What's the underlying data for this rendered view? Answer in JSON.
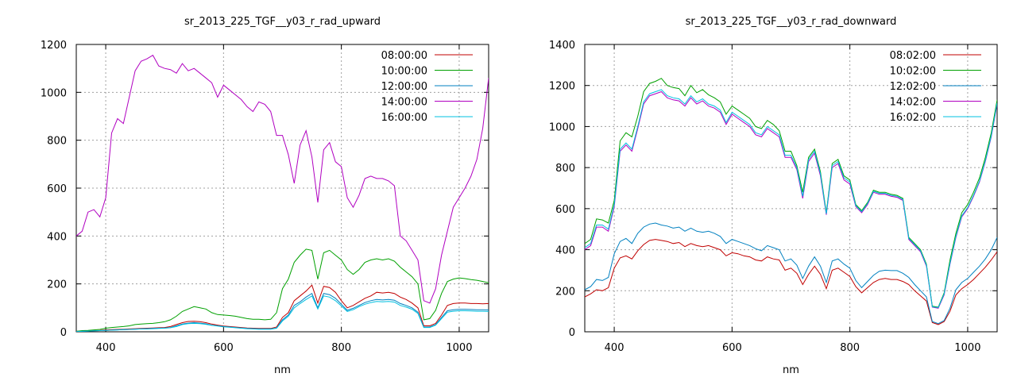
{
  "chart_data": [
    {
      "type": "line",
      "title": "sr_2013_225_TGF__y03_r_rad_upward",
      "xlabel": "nm",
      "ylabel": "",
      "xlim": [
        350,
        1050
      ],
      "ylim": [
        0,
        1200
      ],
      "xticks": [
        400,
        600,
        800,
        1000
      ],
      "yticks": [
        0,
        200,
        400,
        600,
        800,
        1000,
        1200
      ],
      "grid": true,
      "legend_position": "top-right",
      "x": [
        350,
        360,
        370,
        380,
        390,
        400,
        410,
        420,
        430,
        440,
        450,
        460,
        470,
        480,
        490,
        500,
        510,
        520,
        530,
        540,
        550,
        560,
        570,
        580,
        590,
        600,
        610,
        620,
        630,
        640,
        650,
        660,
        670,
        680,
        690,
        700,
        710,
        720,
        730,
        740,
        750,
        760,
        770,
        780,
        790,
        800,
        810,
        820,
        830,
        840,
        850,
        860,
        870,
        880,
        890,
        900,
        910,
        920,
        930,
        940,
        950,
        960,
        970,
        980,
        990,
        1000,
        1010,
        1020,
        1030,
        1040,
        1050
      ],
      "series": [
        {
          "name": "08:00:00",
          "color": "#c00000",
          "values": [
            2,
            3,
            4,
            5,
            6,
            8,
            9,
            10,
            11,
            12,
            13,
            14,
            15,
            16,
            17,
            18,
            22,
            30,
            38,
            43,
            44,
            42,
            38,
            32,
            28,
            24,
            22,
            20,
            18,
            16,
            15,
            14,
            14,
            14,
            20,
            60,
            80,
            130,
            150,
            170,
            195,
            120,
            190,
            185,
            165,
            130,
            100,
            110,
            125,
            140,
            150,
            165,
            162,
            165,
            160,
            145,
            135,
            120,
            100,
            25,
            25,
            35,
            70,
            110,
            118,
            120,
            120,
            118,
            118,
            117,
            118
          ]
        },
        {
          "name": "10:00:00",
          "color": "#00a000",
          "values": [
            2,
            5,
            6,
            8,
            10,
            15,
            18,
            20,
            22,
            25,
            30,
            32,
            34,
            35,
            38,
            42,
            50,
            65,
            85,
            95,
            105,
            100,
            95,
            80,
            72,
            70,
            68,
            65,
            60,
            55,
            52,
            52,
            50,
            52,
            80,
            180,
            220,
            290,
            320,
            345,
            340,
            220,
            330,
            340,
            320,
            300,
            260,
            240,
            260,
            290,
            300,
            305,
            300,
            305,
            295,
            270,
            250,
            230,
            200,
            50,
            55,
            90,
            160,
            210,
            220,
            225,
            222,
            218,
            215,
            210,
            205
          ]
        },
        {
          "name": "12:00:00",
          "color": "#0080c0",
          "values": [
            1,
            2,
            3,
            4,
            5,
            6,
            7,
            8,
            9,
            10,
            11,
            12,
            13,
            14,
            15,
            16,
            18,
            25,
            32,
            36,
            38,
            36,
            33,
            28,
            25,
            22,
            20,
            18,
            16,
            14,
            13,
            12,
            12,
            12,
            16,
            50,
            70,
            110,
            125,
            145,
            160,
            100,
            160,
            155,
            140,
            115,
            90,
            98,
            110,
            122,
            130,
            135,
            133,
            135,
            132,
            118,
            110,
            100,
            82,
            20,
            20,
            30,
            60,
            88,
            92,
            94,
            94,
            93,
            92,
            92,
            91
          ]
        },
        {
          "name": "14:00:00",
          "color": "#b000c0",
          "values": [
            400,
            420,
            500,
            510,
            480,
            560,
            830,
            890,
            870,
            980,
            1090,
            1130,
            1140,
            1155,
            1110,
            1100,
            1095,
            1080,
            1120,
            1090,
            1100,
            1080,
            1060,
            1040,
            980,
            1030,
            1010,
            990,
            970,
            940,
            920,
            960,
            950,
            920,
            820,
            820,
            740,
            620,
            780,
            840,
            730,
            540,
            760,
            790,
            710,
            690,
            560,
            520,
            570,
            640,
            650,
            640,
            640,
            630,
            610,
            400,
            380,
            340,
            300,
            130,
            120,
            180,
            320,
            420,
            520,
            560,
            600,
            650,
            720,
            850,
            1060
          ]
        },
        {
          "name": "16:00:00",
          "color": "#00c0e0",
          "values": [
            1,
            2,
            3,
            4,
            5,
            6,
            7,
            8,
            9,
            10,
            11,
            12,
            12,
            13,
            14,
            15,
            17,
            22,
            30,
            34,
            35,
            34,
            31,
            27,
            24,
            21,
            19,
            17,
            15,
            13,
            12,
            11,
            11,
            11,
            15,
            45,
            65,
            100,
            118,
            135,
            150,
            95,
            150,
            145,
            130,
            108,
            85,
            92,
            105,
            115,
            122,
            127,
            125,
            127,
            124,
            110,
            103,
            94,
            77,
            18,
            18,
            28,
            55,
            82,
            86,
            88,
            88,
            87,
            86,
            86,
            85
          ]
        }
      ]
    },
    {
      "type": "line",
      "title": "sr_2013_225_TGF__y03_r_rad_downward",
      "xlabel": "nm",
      "ylabel": "",
      "xlim": [
        350,
        1050
      ],
      "ylim": [
        0,
        1400
      ],
      "xticks": [
        400,
        600,
        800,
        1000
      ],
      "yticks": [
        0,
        200,
        400,
        600,
        800,
        1000,
        1200,
        1400
      ],
      "grid": true,
      "legend_position": "top-right",
      "x": [
        350,
        360,
        370,
        380,
        390,
        400,
        410,
        420,
        430,
        440,
        450,
        460,
        470,
        480,
        490,
        500,
        510,
        520,
        530,
        540,
        550,
        560,
        570,
        580,
        590,
        600,
        610,
        620,
        630,
        640,
        650,
        660,
        670,
        680,
        690,
        700,
        710,
        720,
        730,
        740,
        750,
        760,
        770,
        780,
        790,
        800,
        810,
        820,
        830,
        840,
        850,
        860,
        870,
        880,
        890,
        900,
        910,
        920,
        930,
        940,
        950,
        960,
        970,
        980,
        990,
        1000,
        1010,
        1020,
        1030,
        1040,
        1050
      ],
      "series": [
        {
          "name": "08:02:00",
          "color": "#c00000",
          "values": [
            170,
            185,
            205,
            200,
            215,
            310,
            360,
            370,
            355,
            395,
            425,
            445,
            450,
            445,
            440,
            430,
            435,
            415,
            430,
            420,
            415,
            420,
            410,
            400,
            370,
            385,
            380,
            370,
            365,
            350,
            345,
            365,
            355,
            350,
            300,
            310,
            285,
            230,
            280,
            320,
            280,
            210,
            300,
            310,
            290,
            270,
            220,
            190,
            215,
            240,
            255,
            260,
            255,
            255,
            245,
            230,
            200,
            175,
            150,
            45,
            35,
            50,
            100,
            180,
            210,
            230,
            255,
            285,
            315,
            350,
            390
          ]
        },
        {
          "name": "10:02:00",
          "color": "#00a000",
          "values": [
            430,
            450,
            550,
            545,
            530,
            640,
            930,
            970,
            950,
            1050,
            1170,
            1210,
            1220,
            1235,
            1200,
            1190,
            1185,
            1150,
            1200,
            1165,
            1180,
            1155,
            1140,
            1120,
            1060,
            1100,
            1080,
            1060,
            1040,
            1000,
            990,
            1030,
            1010,
            980,
            880,
            880,
            810,
            680,
            850,
            890,
            780,
            580,
            820,
            840,
            760,
            740,
            620,
            590,
            630,
            690,
            680,
            680,
            670,
            665,
            650,
            460,
            430,
            400,
            330,
            125,
            120,
            190,
            350,
            480,
            580,
            620,
            680,
            750,
            850,
            970,
            1130
          ]
        },
        {
          "name": "12:02:00",
          "color": "#0080c0",
          "values": [
            205,
            220,
            255,
            250,
            265,
            380,
            440,
            455,
            430,
            480,
            510,
            525,
            530,
            520,
            515,
            505,
            510,
            490,
            505,
            490,
            485,
            490,
            480,
            465,
            430,
            450,
            440,
            430,
            420,
            405,
            395,
            420,
            410,
            400,
            345,
            355,
            325,
            260,
            320,
            365,
            320,
            240,
            345,
            355,
            330,
            310,
            250,
            215,
            245,
            275,
            295,
            300,
            298,
            298,
            285,
            265,
            230,
            200,
            170,
            50,
            40,
            55,
            115,
            205,
            240,
            260,
            290,
            320,
            355,
            400,
            460
          ]
        },
        {
          "name": "14:02:00",
          "color": "#b000c0",
          "values": [
            400,
            420,
            510,
            510,
            490,
            610,
            880,
            910,
            880,
            990,
            1110,
            1150,
            1160,
            1170,
            1140,
            1130,
            1125,
            1100,
            1140,
            1110,
            1125,
            1100,
            1090,
            1070,
            1010,
            1060,
            1040,
            1020,
            1000,
            960,
            950,
            990,
            970,
            950,
            850,
            850,
            790,
            650,
            830,
            870,
            760,
            570,
            800,
            820,
            740,
            720,
            610,
            580,
            620,
            680,
            670,
            670,
            660,
            655,
            640,
            450,
            420,
            390,
            320,
            120,
            115,
            180,
            330,
            460,
            560,
            600,
            660,
            730,
            830,
            950,
            1110
          ]
        },
        {
          "name": "16:02:00",
          "color": "#00c0e0",
          "values": [
            410,
            430,
            520,
            520,
            500,
            620,
            890,
            920,
            890,
            1000,
            1120,
            1160,
            1170,
            1180,
            1150,
            1140,
            1135,
            1110,
            1150,
            1120,
            1135,
            1110,
            1100,
            1080,
            1020,
            1070,
            1050,
            1030,
            1010,
            970,
            960,
            1000,
            980,
            960,
            860,
            860,
            800,
            660,
            840,
            880,
            770,
            575,
            810,
            830,
            750,
            730,
            615,
            585,
            625,
            685,
            675,
            675,
            665,
            660,
            645,
            455,
            425,
            395,
            325,
            122,
            118,
            185,
            335,
            465,
            565,
            605,
            665,
            735,
            835,
            955,
            1115
          ]
        }
      ]
    }
  ]
}
